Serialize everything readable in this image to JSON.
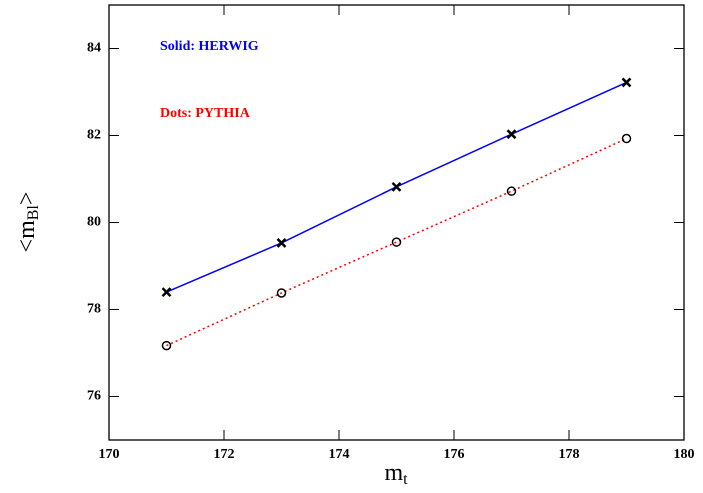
{
  "chart_data": {
    "type": "line",
    "xlabel": {
      "main": "m",
      "sub": "t"
    },
    "ylabel": {
      "main": "<m",
      "sub": "Bl",
      "end": ">"
    },
    "x": [
      171,
      173,
      175,
      177,
      179
    ],
    "series": [
      {
        "name": "Solid: HERWIG",
        "color": "#0000ff",
        "dash": "solid",
        "marker": "cross",
        "values": [
          78.4,
          79.53,
          80.82,
          82.03,
          83.22
        ]
      },
      {
        "name": "Dots: PYTHIA",
        "color": "#ff0000",
        "dash": "dotted",
        "marker": "circle",
        "values": [
          77.17,
          78.38,
          79.55,
          80.72,
          81.93
        ]
      }
    ],
    "xlim": [
      170,
      180
    ],
    "xticks": [
      170,
      172,
      174,
      176,
      178,
      180
    ],
    "ylim": [
      75,
      85
    ],
    "yticks": [
      76,
      78,
      80,
      82,
      84
    ]
  }
}
